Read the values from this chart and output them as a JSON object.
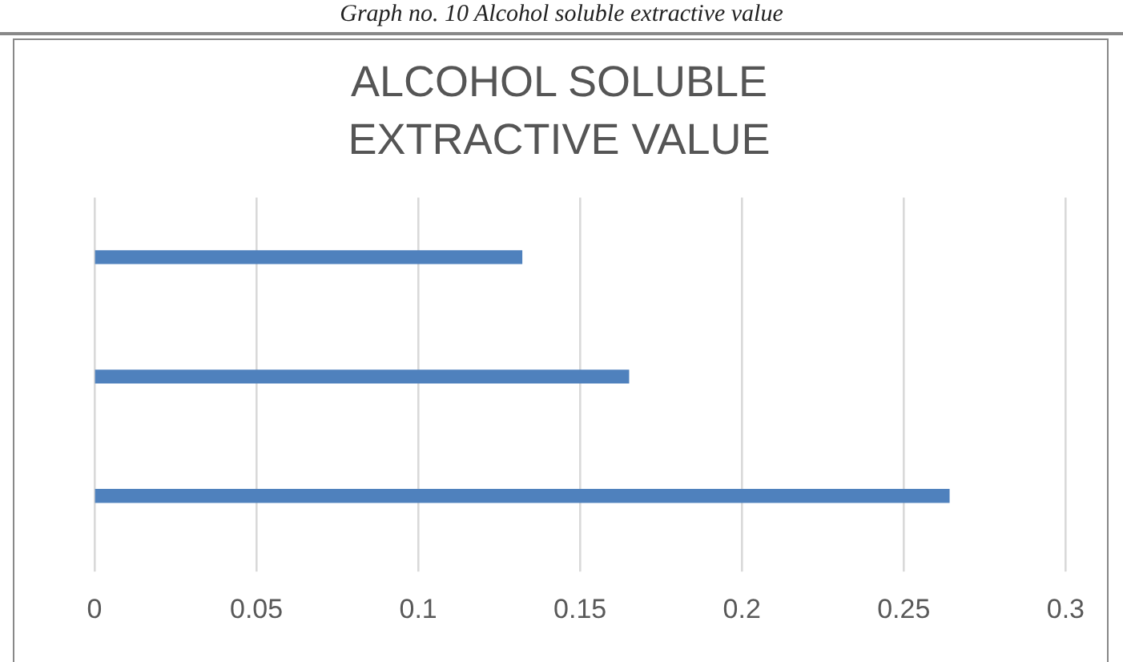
{
  "chart_data": {
    "type": "bar",
    "orientation": "horizontal",
    "title": "ALCOHOL SOLUBLE EXTRACTIVE VALUE",
    "annotations": [
      "Graph no. 10 Alcohol soluble extractive value"
    ],
    "categories": [
      null,
      null,
      null
    ],
    "values": [
      0.132,
      0.165,
      0.264
    ],
    "color": "#4f81bd",
    "xlim": [
      0,
      0.3
    ],
    "xticks": [
      0,
      0.05,
      0.1,
      0.15,
      0.2,
      0.25,
      0.3
    ],
    "grid": "x"
  }
}
